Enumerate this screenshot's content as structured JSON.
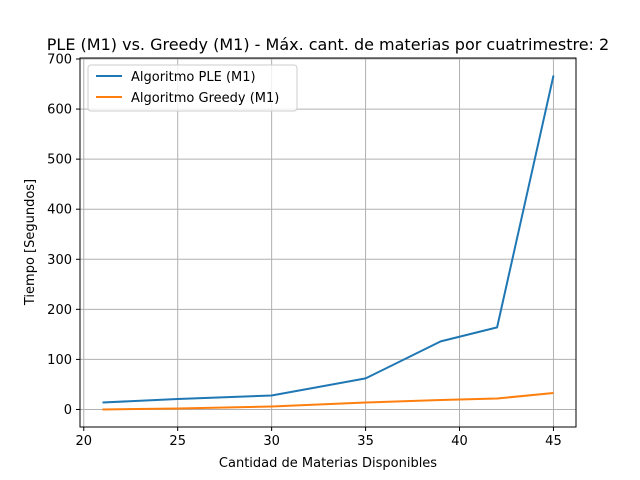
{
  "chart_data": {
    "type": "line",
    "title": "PLE (M1) vs. Greedy (M1) - Máx. cant. de materias por cuatrimestre: 2",
    "xlabel": "Cantidad de Materias Disponibles",
    "ylabel": "Tiempo [Segundos]",
    "xlim": [
      19.8,
      46.2
    ],
    "ylim": [
      -35,
      702
    ],
    "xticks": [
      "20",
      "25",
      "30",
      "35",
      "40",
      "45"
    ],
    "yticks": [
      "0",
      "100",
      "200",
      "300",
      "400",
      "500",
      "600",
      "700"
    ],
    "grid": true,
    "legend_position": "top-left",
    "x": [
      21,
      25,
      30,
      35,
      39,
      42,
      45
    ],
    "series": [
      {
        "name": "Algoritmo PLE (M1)",
        "color": "#1f77b4",
        "values": [
          14,
          21,
          28,
          62,
          136,
          164,
          667
        ]
      },
      {
        "name": "Algoritmo Greedy (M1)",
        "color": "#ff7f0e",
        "values": [
          0,
          2,
          6,
          14,
          19,
          22,
          33
        ]
      }
    ]
  }
}
